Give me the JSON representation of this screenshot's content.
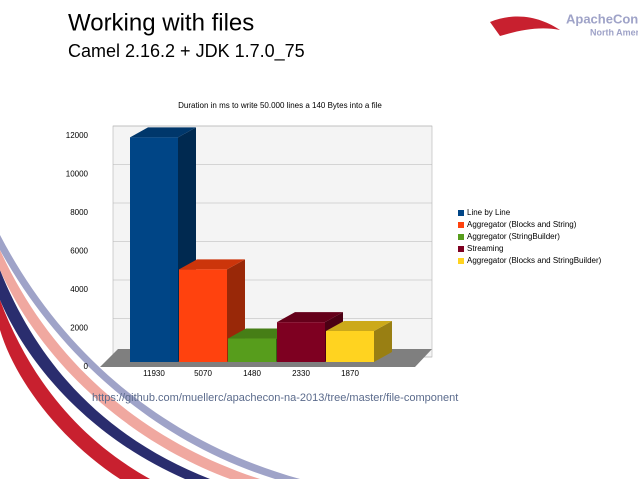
{
  "slide": {
    "title": "Working with files",
    "subtitle": "Camel 2.16.2 + JDK 1.7.0_75",
    "link": "https://github.com/muellerc/apachecon-na-2013/tree/master/file-component",
    "logo": [
      "ApacheCon",
      "North America"
    ]
  },
  "chart_data": {
    "type": "bar3d",
    "title": "Duration in ms to write 50.000 lines a 140 Bytes into a file",
    "series": [
      {
        "name": "Line by Line",
        "color": "#004586",
        "values": [
          11930
        ]
      },
      {
        "name": "Aggregator (Blocks and String)",
        "color": "#ff420e",
        "values": [
          5070
        ]
      },
      {
        "name": "Aggregator (StringBuilder)",
        "color": "#579d1c",
        "values": [
          1480
        ]
      },
      {
        "name": "Streaming",
        "color": "#7e0021",
        "values": [
          2330
        ]
      },
      {
        "name": "Aggregator (Blocks and StringBuilder)",
        "color": "#ffd320",
        "values": [
          1870
        ]
      }
    ],
    "ylim": [
      0,
      12000
    ],
    "yticks": [
      0,
      2000,
      4000,
      6000,
      8000,
      10000,
      12000
    ],
    "grid": true,
    "legend": "right"
  }
}
